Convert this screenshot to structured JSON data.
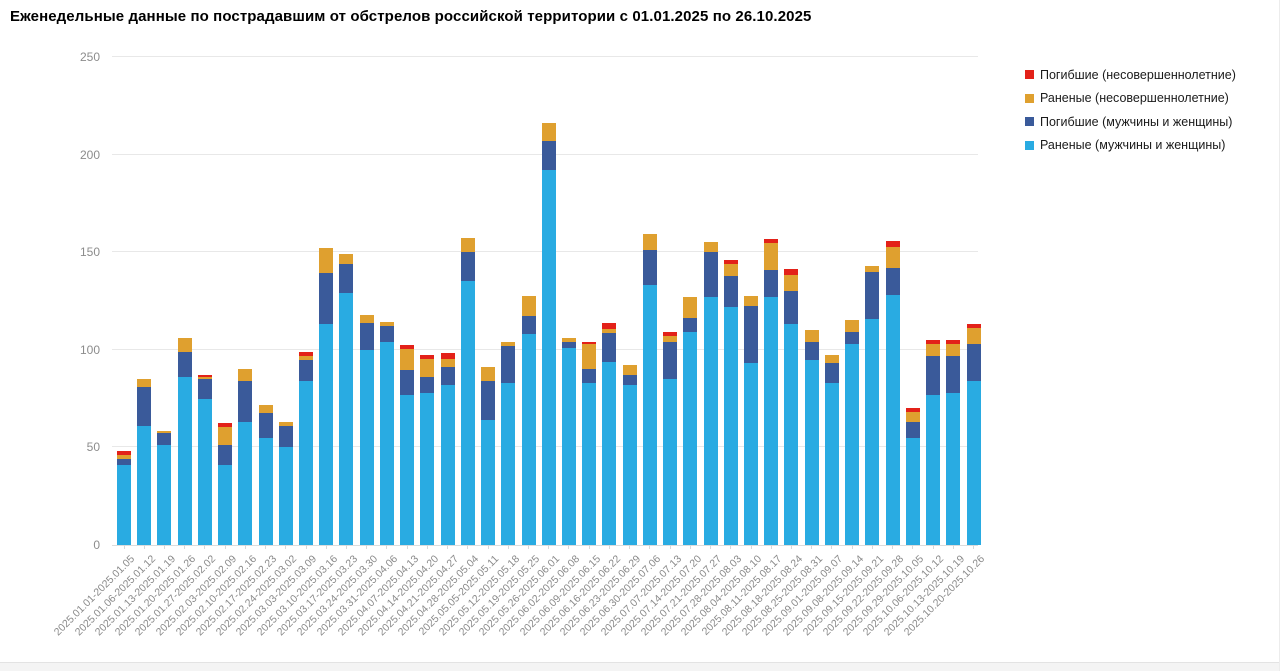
{
  "title": "Еженедельные данные по пострадавшим от обстрелов российской территории с 01.01.2025 по 26.10.2025",
  "chart_data": {
    "type": "bar",
    "stacked": true,
    "grid": "horizontal",
    "legend_position": "top-right",
    "ylim": [
      0,
      250
    ],
    "yticks": [
      0,
      50,
      100,
      150,
      200,
      250
    ],
    "xlabel": "",
    "ylabel": "",
    "categories": [
      "2025.01.01-2025.01.05",
      "2025.01.06-2025.01.12",
      "2025.01.13-2025.01.19",
      "2025.01.20-2025.01.26",
      "2025.01.27-2025.02.02",
      "2025.02.03-2025.02.09",
      "2025.02.10-2025.02.16",
      "2025.02.17-2025.02.23",
      "2025.02.24-2025.03.02",
      "2025.03.03-2025.03.09",
      "2025.03.10-2025.03.16",
      "2025.03.17-2025.03.23",
      "2025.03.24-2025.03.30",
      "2025.03.31-2025.04.06",
      "2025.04.07-2025.04.13",
      "2025.04.14-2025.04.20",
      "2025.04.21-2025.04.27",
      "2025.04.28-2025.05.04",
      "2025.05.05-2025.05.11",
      "2025.05.12-2025.05.18",
      "2025.05.19-2025.05.25",
      "2025.05.26-2025.06.01",
      "2025.06.02-2025.06.08",
      "2025.06.09-2025.06.15",
      "2025.06.16-2025.06.22",
      "2025.06.23-2025.06.29",
      "2025.06.30-2025.07.06",
      "2025.07.07-2025.07.13",
      "2025.07.14-2025.07.20",
      "2025.07.21-2025.07.27",
      "2025.07.28-2025.08.03",
      "2025.08.04-2025.08.10",
      "2025.08.11-2025.08.17",
      "2025.08.18-2025.08.24",
      "2025.08.25-2025.08.31",
      "2025.09.01-2025.09.07",
      "2025.09.08-2025.09.14",
      "2025.09.15-2025.09.21",
      "2025.09.22-2025.09.28",
      "2025.09.29-2025.10.05",
      "2025.10.06-2025.10.12",
      "2025.10.13-2025.10.19",
      "2025.10.20-2025.10.26"
    ],
    "series": [
      {
        "name": "Раненые (мужчины и женщины)",
        "color": "#29abe2",
        "values": [
          41,
          61,
          51,
          86,
          75,
          41,
          63,
          55,
          50,
          84,
          113,
          129,
          100,
          104,
          77,
          78,
          82,
          135,
          64,
          83,
          108,
          192,
          101,
          83,
          94,
          82,
          133,
          85,
          109,
          127,
          122,
          93,
          127,
          113,
          95,
          83,
          103,
          116,
          128,
          55,
          77,
          78,
          84
        ]
      },
      {
        "name": "Погибшие (мужчины и женщины)",
        "color": "#3a5a9a",
        "values": [
          3,
          20,
          6,
          13,
          10,
          10,
          21,
          13,
          11,
          11,
          26,
          15,
          14,
          8,
          13,
          8,
          9,
          15,
          20,
          19,
          9,
          15,
          3,
          7,
          15,
          5,
          18,
          19,
          7,
          23,
          16,
          29,
          14,
          17,
          9,
          10,
          6,
          24,
          14,
          8,
          20,
          19,
          19
        ]
      },
      {
        "name": "Раненые (несовершеннолетние)",
        "color": "#dfa02f",
        "values": [
          2,
          4,
          1,
          7,
          1,
          9,
          6,
          4,
          2,
          2,
          13,
          5,
          4,
          2,
          11,
          9,
          4,
          7,
          7,
          2,
          10,
          9,
          2,
          13,
          2,
          5,
          8,
          3,
          11,
          5,
          6,
          5,
          14,
          8,
          6,
          4,
          6,
          3,
          11,
          5,
          6,
          6,
          8
        ]
      },
      {
        "name": "Погибшие (несовершеннолетние)",
        "color": "#e32119",
        "values": [
          2,
          0,
          0,
          0,
          1,
          2,
          0,
          0,
          0,
          2,
          0,
          0,
          0,
          0,
          2,
          2,
          3,
          0,
          0,
          0,
          0,
          0,
          0,
          1,
          3,
          0,
          0,
          2,
          0,
          0,
          2,
          0,
          2,
          3,
          0,
          0,
          0,
          0,
          3,
          2,
          2,
          2,
          2
        ]
      }
    ],
    "legend_items": [
      "Погибшие (несовершеннолетние)",
      "Раненые (несовершеннолетние)",
      "Погибшие (мужчины и женщины)",
      "Раненые (мужчины и женщины)"
    ]
  }
}
